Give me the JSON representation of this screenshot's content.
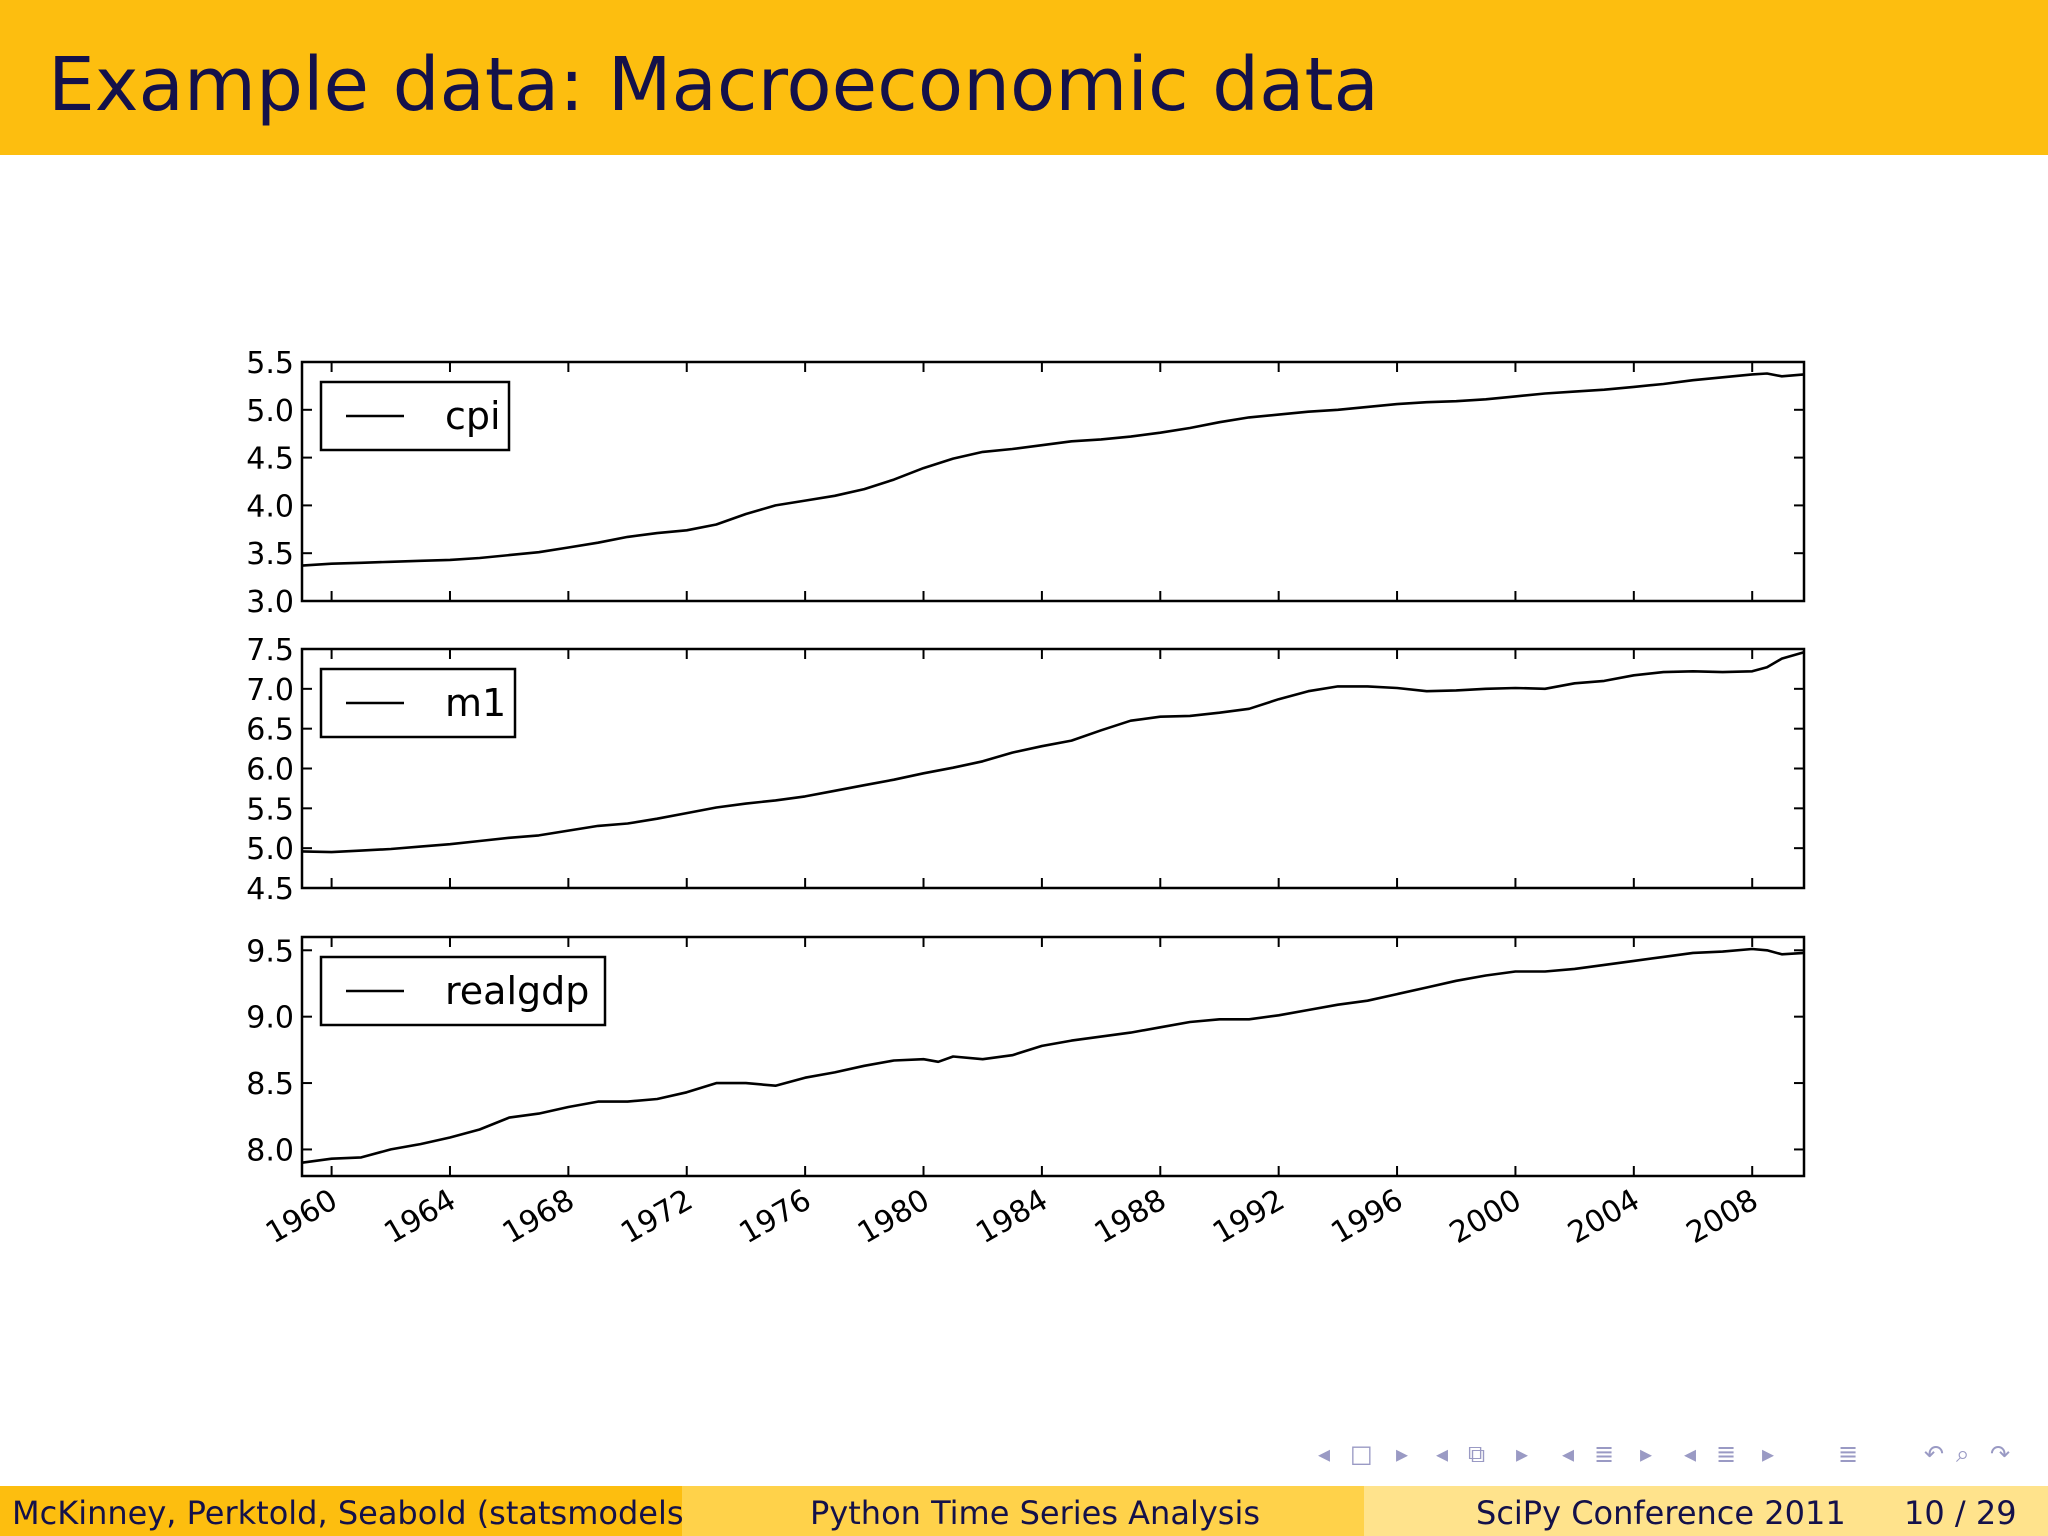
{
  "slide": {
    "title": "Example data: Macroeconomic data"
  },
  "footer": {
    "authors": "McKinney, Perktold, Seabold  (statsmodels)",
    "talk_title": "Python Time Series Analysis",
    "conference": "SciPy Conference 2011",
    "page": "10 / 29"
  },
  "colors": {
    "title_bar": "#FDBE0F",
    "title_text": "#14114A",
    "footer_left": "#FDBE0F",
    "footer_mid": "#FFD24A",
    "footer_right": "#FFE38C",
    "nav_icons": "#9a9ac4"
  },
  "nav_icons": [
    "frame-prev-icon",
    "frame-icon",
    "frame-next-icon",
    "subsection-prev-icon",
    "subsection-icon",
    "subsection-next-icon",
    "section-prev-icon",
    "section-icon",
    "section-next-icon",
    "toc-icon",
    "back-icon",
    "search-icon",
    "forward-icon"
  ],
  "chart_data": [
    {
      "type": "line",
      "legend": "cpi",
      "legend_position": "upper-left",
      "ylim": [
        3.0,
        5.5
      ],
      "yticks": [
        "5.5",
        "5.0",
        "4.5",
        "4.0",
        "3.5",
        "3.0"
      ],
      "x": [
        1959.0,
        1960.0,
        1961.0,
        1962.0,
        1963.0,
        1964.0,
        1965.0,
        1966.0,
        1967.0,
        1968.0,
        1969.0,
        1970.0,
        1971.0,
        1972.0,
        1973.0,
        1974.0,
        1975.0,
        1976.0,
        1977.0,
        1978.0,
        1979.0,
        1980.0,
        1981.0,
        1982.0,
        1983.0,
        1984.0,
        1985.0,
        1986.0,
        1987.0,
        1988.0,
        1989.0,
        1990.0,
        1991.0,
        1992.0,
        1993.0,
        1994.0,
        1995.0,
        1996.0,
        1997.0,
        1998.0,
        1999.0,
        2000.0,
        2001.0,
        2002.0,
        2003.0,
        2004.0,
        2005.0,
        2006.0,
        2007.0,
        2008.0,
        2008.5,
        2009.0,
        2009.75
      ],
      "values": [
        3.37,
        3.39,
        3.4,
        3.41,
        3.42,
        3.43,
        3.45,
        3.48,
        3.51,
        3.56,
        3.61,
        3.67,
        3.71,
        3.74,
        3.8,
        3.91,
        4.0,
        4.05,
        4.1,
        4.17,
        4.27,
        4.39,
        4.49,
        4.56,
        4.59,
        4.63,
        4.67,
        4.69,
        4.72,
        4.76,
        4.81,
        4.87,
        4.92,
        4.95,
        4.98,
        5.0,
        5.03,
        5.06,
        5.08,
        5.09,
        5.11,
        5.14,
        5.17,
        5.19,
        5.21,
        5.24,
        5.27,
        5.31,
        5.34,
        5.37,
        5.38,
        5.35,
        5.37
      ]
    },
    {
      "type": "line",
      "legend": "m1",
      "legend_position": "upper-left",
      "ylim": [
        4.5,
        7.5
      ],
      "yticks": [
        "7.5",
        "7.0",
        "6.5",
        "6.0",
        "5.5",
        "5.0",
        "4.5"
      ],
      "x": [
        1959.0,
        1960.0,
        1961.0,
        1962.0,
        1963.0,
        1964.0,
        1965.0,
        1966.0,
        1967.0,
        1968.0,
        1969.0,
        1970.0,
        1971.0,
        1972.0,
        1973.0,
        1974.0,
        1975.0,
        1976.0,
        1977.0,
        1978.0,
        1979.0,
        1980.0,
        1981.0,
        1982.0,
        1983.0,
        1984.0,
        1985.0,
        1986.0,
        1987.0,
        1988.0,
        1989.0,
        1990.0,
        1991.0,
        1992.0,
        1993.0,
        1994.0,
        1995.0,
        1996.0,
        1997.0,
        1998.0,
        1999.0,
        2000.0,
        2001.0,
        2002.0,
        2003.0,
        2004.0,
        2005.0,
        2006.0,
        2007.0,
        2008.0,
        2008.5,
        2009.0,
        2009.75
      ],
      "values": [
        4.96,
        4.95,
        4.97,
        4.99,
        5.02,
        5.05,
        5.09,
        5.13,
        5.16,
        5.22,
        5.28,
        5.31,
        5.37,
        5.44,
        5.51,
        5.56,
        5.6,
        5.65,
        5.72,
        5.79,
        5.86,
        5.94,
        6.01,
        6.09,
        6.2,
        6.28,
        6.35,
        6.48,
        6.6,
        6.65,
        6.66,
        6.7,
        6.75,
        6.87,
        6.97,
        7.03,
        7.03,
        7.01,
        6.97,
        6.98,
        7.0,
        7.01,
        7.0,
        7.07,
        7.1,
        7.17,
        7.21,
        7.22,
        7.21,
        7.22,
        7.27,
        7.38,
        7.46
      ]
    },
    {
      "type": "line",
      "legend": "realgdp",
      "legend_position": "upper-left",
      "ylim": [
        7.8,
        9.6
      ],
      "yticks": [
        "9.5",
        "9.0",
        "8.5",
        "8.0"
      ],
      "x": [
        1959.0,
        1960.0,
        1961.0,
        1962.0,
        1963.0,
        1964.0,
        1965.0,
        1966.0,
        1967.0,
        1968.0,
        1969.0,
        1970.0,
        1971.0,
        1972.0,
        1973.0,
        1974.0,
        1975.0,
        1976.0,
        1977.0,
        1978.0,
        1979.0,
        1980.0,
        1980.5,
        1981.0,
        1982.0,
        1983.0,
        1984.0,
        1985.0,
        1986.0,
        1987.0,
        1988.0,
        1989.0,
        1990.0,
        1991.0,
        1992.0,
        1993.0,
        1994.0,
        1995.0,
        1996.0,
        1997.0,
        1998.0,
        1999.0,
        2000.0,
        2001.0,
        2002.0,
        2003.0,
        2004.0,
        2005.0,
        2006.0,
        2007.0,
        2008.0,
        2008.5,
        2009.0,
        2009.75
      ],
      "values": [
        7.9,
        7.93,
        7.94,
        8.0,
        8.04,
        8.09,
        8.15,
        8.24,
        8.27,
        8.32,
        8.36,
        8.36,
        8.38,
        8.43,
        8.5,
        8.5,
        8.48,
        8.54,
        8.58,
        8.63,
        8.67,
        8.68,
        8.66,
        8.7,
        8.68,
        8.71,
        8.78,
        8.82,
        8.85,
        8.88,
        8.92,
        8.96,
        8.98,
        8.98,
        9.01,
        9.05,
        9.09,
        9.12,
        9.17,
        9.22,
        9.27,
        9.31,
        9.34,
        9.34,
        9.36,
        9.39,
        9.42,
        9.45,
        9.48,
        9.49,
        9.51,
        9.5,
        9.47,
        9.48
      ]
    }
  ],
  "shared_x": {
    "xlim": [
      1959.0,
      2009.75
    ],
    "xticks": [
      "1960",
      "1964",
      "1968",
      "1972",
      "1976",
      "1980",
      "1984",
      "1988",
      "1992",
      "1996",
      "2000",
      "2004",
      "2008"
    ],
    "xtick_values": [
      1960,
      1964,
      1968,
      1972,
      1976,
      1980,
      1984,
      1988,
      1992,
      1996,
      2000,
      2004,
      2008
    ]
  }
}
